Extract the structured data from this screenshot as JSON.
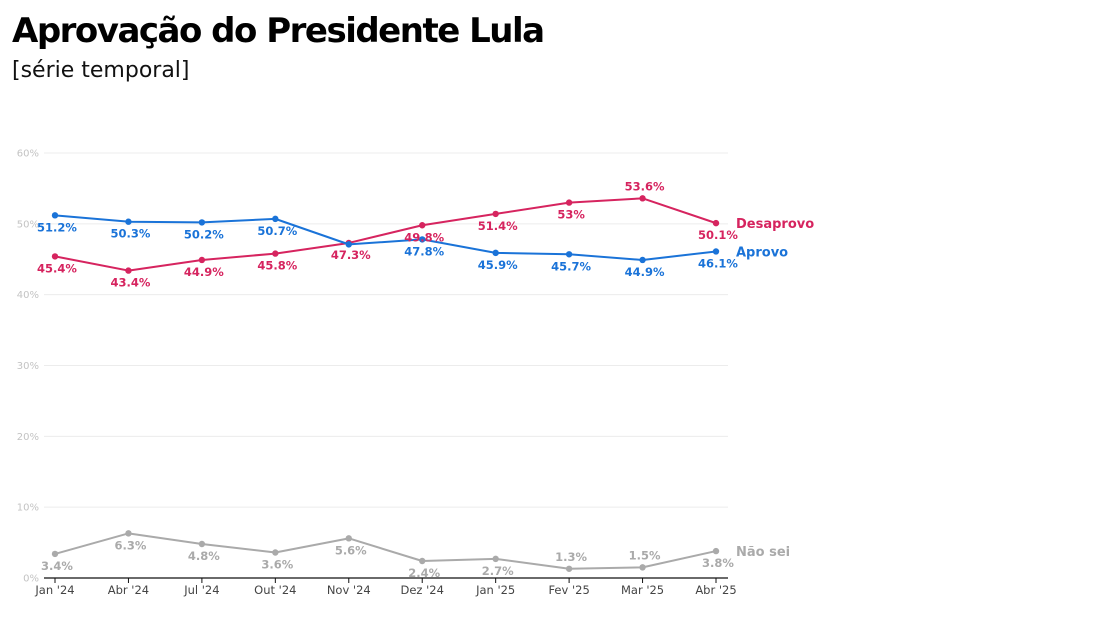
{
  "header": {
    "title": "Aprovação do Presidente Lula",
    "subtitle": "[série temporal]"
  },
  "chart_data": {
    "type": "line",
    "title": "Aprovação do Presidente Lula",
    "subtitle": "[série temporal]",
    "xlabel": "",
    "ylabel": "",
    "ylim": [
      0,
      60
    ],
    "yticks": [
      0,
      10,
      20,
      30,
      40,
      50,
      60
    ],
    "ytick_labels": [
      "0%",
      "10%",
      "20%",
      "30%",
      "40%",
      "50%",
      "60%"
    ],
    "grid": true,
    "legend": "direct labels at right end of lines",
    "categories": [
      "Jan '24",
      "Abr '24",
      "Jul '24",
      "Out '24",
      "Nov '24",
      "Dez '24",
      "Jan '25",
      "Fev '25",
      "Mar '25",
      "Abr '25"
    ],
    "series": [
      {
        "name": "Desaprovo",
        "color": "#d6245f",
        "values": [
          45.4,
          43.4,
          44.9,
          45.8,
          47.3,
          49.8,
          51.4,
          53.0,
          53.6,
          50.1
        ],
        "labels": [
          "45.4%",
          "43.4%",
          "44.9%",
          "45.8%",
          "47.3%",
          "49.8%",
          "51.4%",
          "53%",
          "53.6%",
          "50.1%"
        ],
        "label_pos": [
          "below",
          "below",
          "below",
          "below",
          "below",
          "below",
          "below",
          "below",
          "above",
          "below"
        ]
      },
      {
        "name": "Aprovo",
        "color": "#1a73d8",
        "values": [
          51.2,
          50.3,
          50.2,
          50.7,
          47.1,
          47.8,
          45.9,
          45.7,
          44.9,
          46.1
        ],
        "labels": [
          "51.2%",
          "50.3%",
          "50.2%",
          "50.7%",
          "",
          "47.8%",
          "45.9%",
          "45.7%",
          "44.9%",
          "46.1%"
        ],
        "label_pos": [
          "below",
          "below",
          "below",
          "below",
          "below",
          "below",
          "below",
          "below",
          "below",
          "below"
        ]
      },
      {
        "name": "Não sei",
        "color": "#aaaaaa",
        "values": [
          3.4,
          6.3,
          4.8,
          3.6,
          5.6,
          2.4,
          2.7,
          1.3,
          1.5,
          3.8
        ],
        "labels": [
          "3.4%",
          "6.3%",
          "4.8%",
          "3.6%",
          "5.6%",
          "2.4%",
          "2.7%",
          "1.3%",
          "1.5%",
          "3.8%"
        ],
        "label_pos": [
          "below",
          "below",
          "below",
          "below",
          "below",
          "below",
          "below",
          "above",
          "above",
          "below"
        ]
      }
    ]
  }
}
